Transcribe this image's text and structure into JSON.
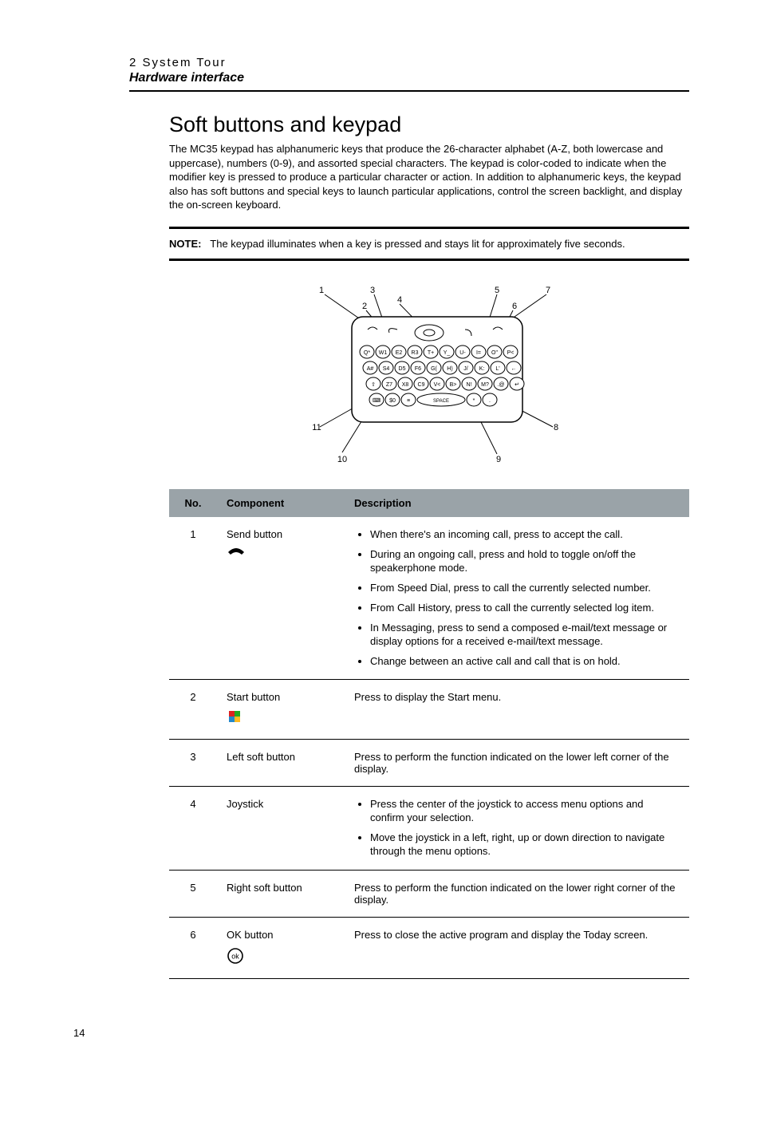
{
  "header": {
    "chapter": "2 System Tour",
    "section": "Hardware interface"
  },
  "heading": "Soft buttons and keypad",
  "intro": "The MC35 keypad has alphanumeric keys that produce the 26-character alphabet (A-Z, both lowercase and uppercase), numbers (0-9), and assorted special characters. The keypad is color-coded to indicate when the modifier key is pressed to produce a particular character or action. In addition to alphanumeric keys, the keypad also has soft buttons and special keys to launch particular applications, control the screen backlight, and display the on-screen keyboard.",
  "note": {
    "label": "NOTE:",
    "text": "The keypad illuminates when a key is pressed and stays lit for approximately five seconds."
  },
  "diagram": {
    "callouts": [
      "1",
      "2",
      "3",
      "4",
      "5",
      "6",
      "7",
      "8",
      "9",
      "10",
      "11"
    ],
    "key_rows": [
      [
        "Q*",
        "W1",
        "E2",
        "R3",
        "T+",
        "Y_",
        "U-",
        "I=",
        "O\"",
        "P<"
      ],
      [
        "A#",
        "S4",
        "D5",
        "F6",
        "G(",
        "H)",
        "J/",
        "K:",
        "L'",
        "←"
      ],
      [
        "⇧",
        "Z7",
        "X8",
        "C9",
        "V<",
        "B>",
        "N!",
        "M?",
        ".@",
        "↵"
      ],
      [
        "⌨",
        "$0",
        "≡",
        "SPACE",
        "*",
        "."
      ]
    ]
  },
  "table": {
    "headers": {
      "no": "No.",
      "component": "Component",
      "description": "Description"
    },
    "rows": [
      {
        "no": "1",
        "component": "Send button",
        "icon": "phone",
        "bullets": [
          "When there's an incoming call, press to accept the call.",
          "During an ongoing call, press and hold to toggle on/off the speakerphone mode.",
          "From Speed Dial, press to call the currently selected number.",
          "From Call History, press to call the currently selected log item.",
          "In Messaging, press to send a composed e-mail/text message or display options for a received e-mail/text message.",
          "Change between an active call and call that is on hold."
        ]
      },
      {
        "no": "2",
        "component": "Start button",
        "icon": "flag",
        "text": "Press to display the Start menu."
      },
      {
        "no": "3",
        "component": "Left soft button",
        "text": "Press to perform the function indicated on the lower left corner of the display."
      },
      {
        "no": "4",
        "component": "Joystick",
        "bullets": [
          "Press the center of the joystick to access menu options and confirm your selection.",
          "Move the joystick in a left, right, up or down direction to navigate through the menu options."
        ]
      },
      {
        "no": "5",
        "component": "Right soft button",
        "text": "Press to perform the function indicated on the lower right corner of the display."
      },
      {
        "no": "6",
        "component": "OK button",
        "icon": "ok",
        "text": "Press to close the active program and display the Today screen."
      }
    ]
  },
  "page_number": "14"
}
